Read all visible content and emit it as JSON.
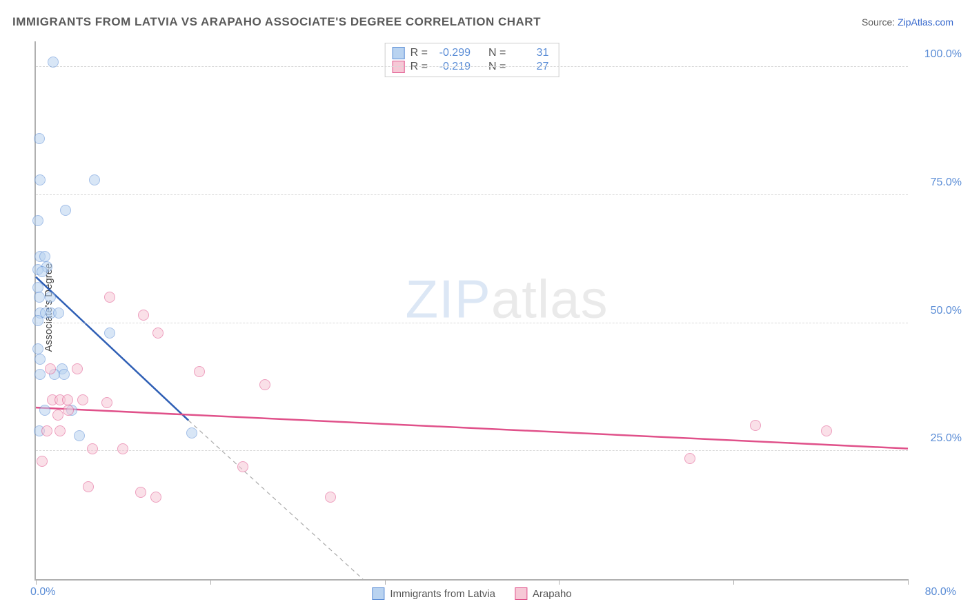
{
  "title": "IMMIGRANTS FROM LATVIA VS ARAPAHO ASSOCIATE'S DEGREE CORRELATION CHART",
  "source_label": "Source: ",
  "source_name": "ZipAtlas.com",
  "y_axis_label": "Associate's Degree",
  "watermark_a": "ZIP",
  "watermark_b": "atlas",
  "chart": {
    "type": "scatter",
    "xlim": [
      0,
      80
    ],
    "ylim": [
      0,
      105
    ],
    "x_tick_positions": [
      0,
      16,
      32,
      48,
      64,
      80
    ],
    "x_tick_labels_shown": {
      "first": "0.0%",
      "last": "80.0%"
    },
    "y_grid": [
      25,
      50,
      75,
      100
    ],
    "y_tick_labels": [
      "25.0%",
      "50.0%",
      "75.0%",
      "100.0%"
    ],
    "background_color": "#ffffff",
    "grid_color": "#d8d8d8",
    "axis_color": "#b0b0b0",
    "tick_label_color": "#5b8dd6",
    "marker_radius": 8,
    "marker_border_width": 1.5,
    "series": [
      {
        "name": "Immigrants from Latvia",
        "fill": "#b9d3f0",
        "stroke": "#5b8dd6",
        "fill_opacity": 0.55,
        "R": "-0.299",
        "N": "31",
        "trend": {
          "solid": {
            "x1": 0,
            "y1": 59,
            "x2": 14,
            "y2": 31
          },
          "dashed": {
            "x1": 14,
            "y1": 31,
            "x2": 30,
            "y2": 0
          },
          "stroke": "#2f5fb5",
          "width": 2.5,
          "dash": "6,5"
        },
        "points": [
          [
            1.6,
            101
          ],
          [
            0.3,
            86
          ],
          [
            0.4,
            78
          ],
          [
            5.4,
            78
          ],
          [
            2.7,
            72
          ],
          [
            0.2,
            70
          ],
          [
            0.4,
            63
          ],
          [
            0.8,
            63
          ],
          [
            1.0,
            61
          ],
          [
            0.2,
            60.5
          ],
          [
            0.6,
            60
          ],
          [
            0.2,
            57
          ],
          [
            0.3,
            55
          ],
          [
            1.3,
            55
          ],
          [
            0.4,
            52
          ],
          [
            0.9,
            52
          ],
          [
            1.4,
            52
          ],
          [
            2.1,
            52
          ],
          [
            0.2,
            50.5
          ],
          [
            6.8,
            48
          ],
          [
            0.2,
            45
          ],
          [
            0.4,
            43
          ],
          [
            2.4,
            41
          ],
          [
            0.4,
            40
          ],
          [
            1.7,
            40
          ],
          [
            2.6,
            40
          ],
          [
            0.8,
            33
          ],
          [
            3.3,
            33
          ],
          [
            0.3,
            29
          ],
          [
            4.0,
            28
          ],
          [
            14.3,
            28.5
          ]
        ]
      },
      {
        "name": "Arapaho",
        "fill": "#f6c8d6",
        "stroke": "#e0518a",
        "fill_opacity": 0.55,
        "R": "-0.219",
        "N": "27",
        "trend": {
          "solid": {
            "x1": 0,
            "y1": 33.5,
            "x2": 80,
            "y2": 25.5
          },
          "stroke": "#e0518a",
          "width": 2.5
        },
        "points": [
          [
            6.8,
            55
          ],
          [
            9.9,
            51.5
          ],
          [
            11.2,
            48
          ],
          [
            1.3,
            41
          ],
          [
            3.8,
            41
          ],
          [
            15.0,
            40.5
          ],
          [
            21.0,
            38
          ],
          [
            1.5,
            35
          ],
          [
            2.2,
            35
          ],
          [
            2.9,
            35
          ],
          [
            4.3,
            35
          ],
          [
            6.5,
            34.5
          ],
          [
            3.0,
            33
          ],
          [
            2.0,
            32
          ],
          [
            1.0,
            29
          ],
          [
            2.2,
            29
          ],
          [
            66.0,
            30
          ],
          [
            72.5,
            29
          ],
          [
            5.2,
            25.5
          ],
          [
            8.0,
            25.5
          ],
          [
            60.0,
            23.5
          ],
          [
            0.6,
            23
          ],
          [
            19.0,
            22
          ],
          [
            4.8,
            18
          ],
          [
            9.6,
            17
          ],
          [
            11.0,
            16
          ],
          [
            27.0,
            16.0
          ]
        ]
      }
    ]
  },
  "legend_top": {
    "r_label": "R =",
    "n_label": "N ="
  },
  "legend_bottom": [
    {
      "label": "Immigrants from Latvia",
      "fill": "#b9d3f0",
      "stroke": "#5b8dd6"
    },
    {
      "label": "Arapaho",
      "fill": "#f6c8d6",
      "stroke": "#e0518a"
    }
  ]
}
